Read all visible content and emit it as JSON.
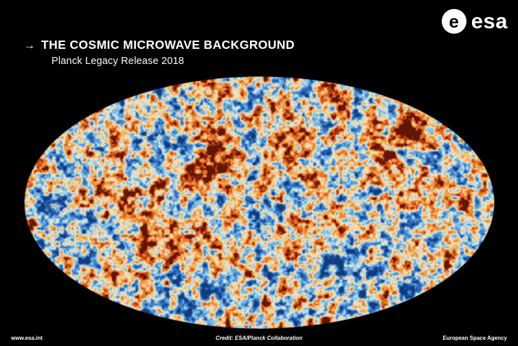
{
  "header": {
    "arrow": "→",
    "title": "THE COSMIC MICROWAVE BACKGROUND",
    "subtitle": "Planck Legacy Release 2018"
  },
  "logo": {
    "globe_letter": "e",
    "text": "esa"
  },
  "map": {
    "label": "Planck full-sky cosmic microwave background map (Mollweide projection)",
    "colormap": [
      "#123a7c",
      "#2f6fc1",
      "#7fc0e8",
      "#efe8d0",
      "#f3bd6e",
      "#ec8030",
      "#c03f12",
      "#5f1605"
    ],
    "colormap_positions": [
      0,
      0.17,
      0.36,
      0.5,
      0.63,
      0.77,
      0.9,
      1
    ],
    "background_color": "#000000"
  },
  "footer": {
    "left": "www.esa.int",
    "center": "Credit: ESA/Planck Collaboration",
    "right": "European Space Agency"
  }
}
